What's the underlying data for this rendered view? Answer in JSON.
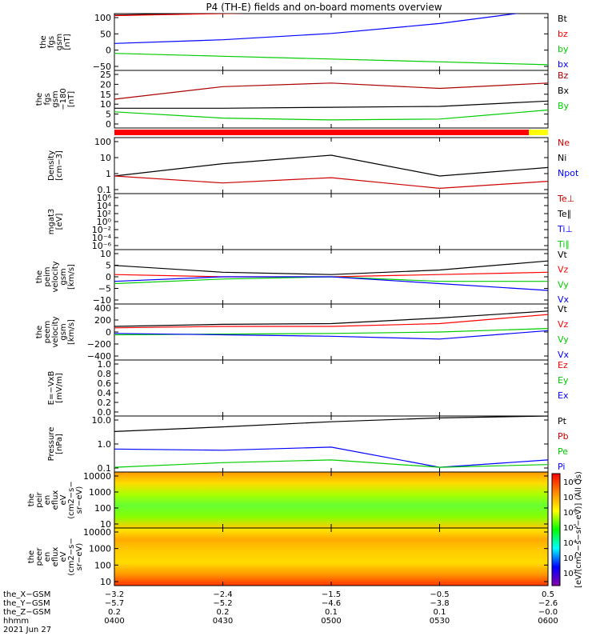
{
  "title": "P4 (TH-E) fields and on-board moments overview",
  "panels": [
    {
      "id": "fgs",
      "ylabel": [
        "the",
        "fgs",
        "gsm",
        "[nT]"
      ],
      "ticks": [
        "100",
        "50",
        "0",
        "−50"
      ],
      "legend": [
        {
          "label": "Bt",
          "color": "#000000"
        },
        {
          "label": "bz",
          "color": "#ff0000"
        },
        {
          "label": "by",
          "color": "#00cc00"
        },
        {
          "label": "bx",
          "color": "#0000ff"
        }
      ]
    },
    {
      "id": "fgs-zoom",
      "ylabel": [
        "the",
        "fgs",
        "gsm",
        "−180",
        "[nT]"
      ],
      "ticks": [
        "25",
        "20",
        "15",
        "10",
        "5",
        "0"
      ],
      "legend": [
        {
          "label": "Bz",
          "color": "#aa0000"
        },
        {
          "label": "Bx",
          "color": "#000000"
        },
        {
          "label": "By",
          "color": "#00cc00"
        }
      ]
    },
    {
      "id": "density",
      "ylabel": [
        "Density",
        "[cm−3]"
      ],
      "ticks": [
        "100",
        "10",
        "1",
        "0.1"
      ],
      "legend": [
        {
          "label": "Ne",
          "color": "#cc0000"
        },
        {
          "label": "Ni",
          "color": "#000000"
        },
        {
          "label": "Npot",
          "color": "#0000ff"
        }
      ]
    },
    {
      "id": "temperature",
      "ylabel": [
        "mgat3",
        "[eV]"
      ],
      "ticks": [
        "10⁶",
        "10⁴",
        "10²",
        "10⁰",
        "10⁻²",
        "10⁻⁴",
        "10⁻⁶"
      ],
      "legend": [
        {
          "label": "Te⊥",
          "color": "#cc0000"
        },
        {
          "label": "Te∥",
          "color": "#000000"
        },
        {
          "label": "Ti⊥",
          "color": "#0000ff"
        },
        {
          "label": "Ti∥",
          "color": "#00cc00"
        }
      ]
    },
    {
      "id": "peim-velocity",
      "ylabel": [
        "the",
        "peim",
        "velocity",
        "gsm",
        "[km/s]"
      ],
      "ticks": [
        "10",
        "5",
        "0",
        "−5",
        "−10"
      ],
      "legend": [
        {
          "label": "Vt",
          "color": "#000000"
        },
        {
          "label": "Vz",
          "color": "#ff0000"
        },
        {
          "label": "Vy",
          "color": "#00cc00"
        },
        {
          "label": "Vx",
          "color": "#0000ff"
        }
      ]
    },
    {
      "id": "peem-velocity",
      "ylabel": [
        "the",
        "peem",
        "velocity",
        "gsm",
        "[km/s]"
      ],
      "ticks": [
        "400",
        "200",
        "0",
        "−200",
        "−400"
      ],
      "legend": [
        {
          "label": "Vt",
          "color": "#000000"
        },
        {
          "label": "Vz",
          "color": "#ff0000"
        },
        {
          "label": "Vy",
          "color": "#00cc00"
        },
        {
          "label": "Vx",
          "color": "#0000ff"
        }
      ]
    },
    {
      "id": "efield",
      "ylabel": [
        "E=−VxB",
        "[mV/m]"
      ],
      "ticks": [
        "1.0",
        "0.8",
        "0.6",
        "0.4",
        "0.2",
        "0.0"
      ],
      "legend": [
        {
          "label": "Ez",
          "color": "#ff0000"
        },
        {
          "label": "Ey",
          "color": "#00cc00"
        },
        {
          "label": "Ex",
          "color": "#0000ff"
        }
      ]
    },
    {
      "id": "pressure",
      "ylabel": [
        "Pressure",
        "[nPa]"
      ],
      "ticks": [
        "10.0",
        "1.0",
        "0.1"
      ],
      "legend": [
        {
          "label": "Pt",
          "color": "#000000"
        },
        {
          "label": "Pb",
          "color": "#cc0000"
        },
        {
          "label": "Pe",
          "color": "#00cc00"
        },
        {
          "label": "Pi",
          "color": "#0000ff"
        }
      ]
    },
    {
      "id": "peir-spectrogram",
      "ylabel": [
        "the",
        "peir",
        "en",
        "eflux",
        "eV",
        "(cm2−s−",
        "sr−eV)"
      ],
      "ticks": [
        "10000",
        "1000",
        "100",
        "10"
      ]
    },
    {
      "id": "peer-spectrogram",
      "ylabel": [
        "the",
        "peer",
        "en",
        "eflux",
        "eV",
        "(cm2−s−",
        "sr−eV)"
      ],
      "ticks": [
        "10000",
        "1000",
        "100",
        "10"
      ]
    }
  ],
  "colorbar": {
    "label": "[eV/(cm2−s−sr−eV)] (All Qs)",
    "ticks": [
      "10⁸",
      "10⁷",
      "10⁶",
      "10⁵",
      "10⁴",
      "10³",
      "10²"
    ],
    "gradient": [
      "#ff0000",
      "#ff8800",
      "#ffff00",
      "#00ff00",
      "#00ffff",
      "#0000ff",
      "#8800aa"
    ]
  },
  "x_axis": {
    "row_labels": [
      "the_X−GSM",
      "the_Y−GSM",
      "the_Z−GSM",
      "hhmm",
      "2021 Jun 27"
    ],
    "columns": [
      {
        "values": [
          "−3.2",
          "−5.7",
          "0.2",
          "0400"
        ]
      },
      {
        "values": [
          "−2.4",
          "−5.2",
          "0.2",
          "0430"
        ]
      },
      {
        "values": [
          "−1.5",
          "−4.6",
          "0.1",
          "0500"
        ]
      },
      {
        "values": [
          "−0.5",
          "−3.8",
          "0.1",
          "0530"
        ]
      },
      {
        "values": [
          "0.5",
          "−2.6",
          "−0.0",
          "0600"
        ]
      }
    ]
  },
  "chart_data": {
    "type": "line",
    "x_label": "hhmm",
    "x_ticks": [
      "0400",
      "0430",
      "0500",
      "0530",
      "0600"
    ],
    "series": [
      {
        "panel": "fgs",
        "name": "Bt",
        "color": "#000000",
        "x": [
          "0400",
          "0430",
          "0500",
          "0530",
          "0600"
        ],
        "values": [
          105,
          112,
          120,
          130,
          145
        ]
      },
      {
        "panel": "fgs",
        "name": "bz",
        "color": "#ff0000",
        "x": [
          "0400",
          "0430",
          "0500",
          "0530",
          "0600"
        ],
        "values": [
          103,
          110,
          118,
          128,
          140
        ]
      },
      {
        "panel": "fgs",
        "name": "by",
        "color": "#00cc00",
        "x": [
          "0400",
          "0430",
          "0500",
          "0530",
          "0600"
        ],
        "values": [
          -30,
          -40,
          -50,
          -60,
          -70
        ]
      },
      {
        "panel": "fgs",
        "name": "bx",
        "color": "#0000ff",
        "x": [
          "0400",
          "0430",
          "0500",
          "0530",
          "0600"
        ],
        "values": [
          5,
          18,
          40,
          75,
          125
        ]
      },
      {
        "panel": "fgs-zoom",
        "name": "Bz",
        "color": "#aa0000",
        "x": [
          "0400",
          "0430",
          "0500",
          "0530",
          "0600"
        ],
        "values": [
          12,
          19,
          21,
          18,
          21
        ]
      },
      {
        "panel": "fgs-zoom",
        "name": "Bx",
        "color": "#000000",
        "x": [
          "0400",
          "0430",
          "0500",
          "0530",
          "0600"
        ],
        "values": [
          7,
          7,
          7.5,
          8,
          11
        ]
      },
      {
        "panel": "fgs-zoom",
        "name": "By",
        "color": "#00cc00",
        "x": [
          "0400",
          "0430",
          "0500",
          "0530",
          "0600"
        ],
        "values": [
          5,
          1.5,
          0.5,
          1,
          6
        ]
      },
      {
        "panel": "density",
        "name": "Ni",
        "color": "#000000",
        "x": [
          "0400",
          "0430",
          "0500",
          "0530",
          "0600"
        ],
        "values": [
          1,
          5,
          15,
          1,
          3
        ]
      },
      {
        "panel": "density",
        "name": "Ne",
        "color": "#cc0000",
        "x": [
          "0400",
          "0430",
          "0500",
          "0530",
          "0600"
        ],
        "values": [
          1,
          0.4,
          0.8,
          0.2,
          0.5
        ]
      },
      {
        "panel": "peim-velocity",
        "name": "Vt",
        "color": "#000000",
        "x": [
          "0400",
          "0430",
          "0500",
          "0530",
          "0600"
        ],
        "values": [
          5,
          2,
          1,
          3,
          7
        ]
      },
      {
        "panel": "peim-velocity",
        "name": "Vz",
        "color": "#ff0000",
        "x": [
          "0400",
          "0430",
          "0500",
          "0530",
          "0600"
        ],
        "values": [
          1,
          0,
          0,
          1,
          2
        ]
      },
      {
        "panel": "peim-velocity",
        "name": "Vy",
        "color": "#00cc00",
        "x": [
          "0400",
          "0430",
          "0500",
          "0530",
          "0600"
        ],
        "values": [
          -3,
          -1,
          0,
          -2,
          -2
        ]
      },
      {
        "panel": "peim-velocity",
        "name": "Vx",
        "color": "#0000ff",
        "x": [
          "0400",
          "0430",
          "0500",
          "0530",
          "0600"
        ],
        "values": [
          -2,
          0,
          0,
          -3,
          -6
        ]
      },
      {
        "panel": "peem-velocity",
        "name": "Vt",
        "color": "#000000",
        "x": [
          "0400",
          "0430",
          "0500",
          "0530",
          "0600"
        ],
        "values": [
          80,
          110,
          120,
          200,
          300
        ]
      },
      {
        "panel": "peem-velocity",
        "name": "Vz",
        "color": "#ff0000",
        "x": [
          "0400",
          "0430",
          "0500",
          "0530",
          "0600"
        ],
        "values": [
          60,
          80,
          80,
          120,
          250
        ]
      },
      {
        "panel": "peem-velocity",
        "name": "Vy",
        "color": "#00cc00",
        "x": [
          "0400",
          "0430",
          "0500",
          "0530",
          "0600"
        ],
        "values": [
          -40,
          -30,
          -20,
          0,
          50
        ]
      },
      {
        "panel": "peem-velocity",
        "name": "Vx",
        "color": "#0000ff",
        "x": [
          "0400",
          "0430",
          "0500",
          "0530",
          "0600"
        ],
        "values": [
          -20,
          -40,
          -60,
          -100,
          20
        ]
      },
      {
        "panel": "pressure",
        "name": "Pt",
        "color": "#000000",
        "x": [
          "0400",
          "0430",
          "0500",
          "0530",
          "0600"
        ],
        "values": [
          4,
          8,
          17,
          30,
          40
        ]
      },
      {
        "panel": "pressure",
        "name": "Pi",
        "color": "#0000ff",
        "x": [
          "0400",
          "0430",
          "0500",
          "0530",
          "0600"
        ],
        "values": [
          0.3,
          0.25,
          0.4,
          0.02,
          0.06
        ]
      },
      {
        "panel": "pressure",
        "name": "Pe",
        "color": "#00cc00",
        "x": [
          "0400",
          "0430",
          "0500",
          "0530",
          "0600"
        ],
        "values": [
          0.02,
          0.04,
          0.06,
          0.02,
          0.03
        ]
      }
    ]
  }
}
